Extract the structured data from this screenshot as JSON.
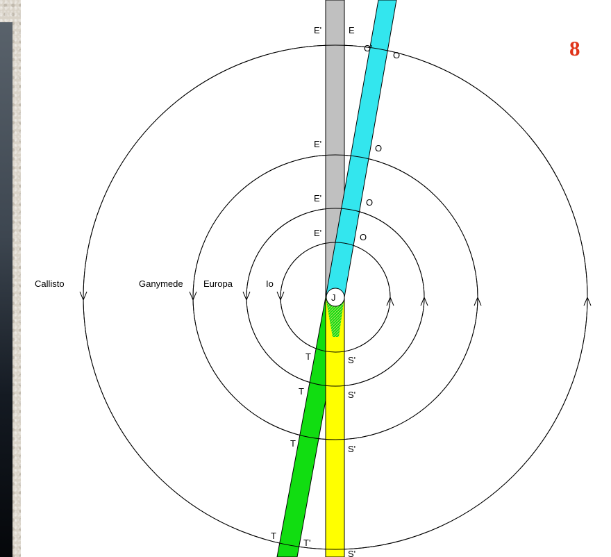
{
  "page_number": "8",
  "moons": [
    "Callisto",
    "Ganymede",
    "Europa",
    "Io"
  ],
  "planet_label": "J",
  "marks": {
    "E": "E",
    "E_prime": "E'",
    "O": "O",
    "O_prime": "O'",
    "T": "T",
    "T_prime": "T'",
    "S_prime": "S'"
  },
  "colors": {
    "eclipse_shadow": "#c0c0c0",
    "occultation_band": "#33e6ee",
    "transit_band": "#11dd11",
    "shadow_transit_band": "#ffff00",
    "orbit": "#000000"
  }
}
